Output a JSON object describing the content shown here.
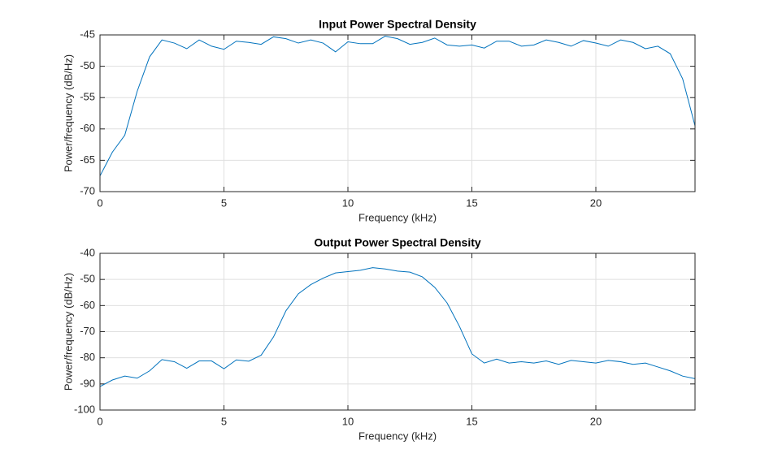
{
  "chart_data": [
    {
      "type": "line",
      "title": "Input Power Spectral Density",
      "xlabel": "Frequency (kHz)",
      "ylabel": "Power/frequency (dB/Hz)",
      "x": [
        0,
        0.5,
        1,
        1.5,
        2,
        2.5,
        3,
        3.5,
        4,
        4.5,
        5,
        5.5,
        6,
        6.5,
        7,
        7.5,
        8,
        8.5,
        9,
        9.5,
        10,
        10.5,
        11,
        11.5,
        12,
        12.5,
        13,
        13.5,
        14,
        14.5,
        15,
        15.5,
        16,
        16.5,
        17,
        17.5,
        18,
        18.5,
        19,
        19.5,
        20,
        20.5,
        21,
        21.5,
        22,
        22.5,
        23,
        23.5,
        24
      ],
      "series": [
        {
          "color": "#0072bd",
          "values": [
            -67.5,
            -63.7,
            -61,
            -54,
            -48.5,
            -45.8,
            -46.3,
            -47.2,
            -45.8,
            -46.8,
            -47.3,
            -46,
            -46.2,
            -46.5,
            -45.3,
            -45.6,
            -46.3,
            -45.8,
            -46.3,
            -47.7,
            -46.1,
            -46.4,
            -46.4,
            -45.2,
            -45.6,
            -46.5,
            -46.2,
            -45.5,
            -46.6,
            -46.8,
            -46.6,
            -47.1,
            -46,
            -46,
            -46.8,
            -46.6,
            -45.8,
            -46.2,
            -46.8,
            -45.9,
            -46.3,
            -46.8,
            -45.8,
            -46.2,
            -47.2,
            -46.8,
            -48,
            -52,
            -59.5
          ]
        }
      ],
      "xlim": [
        0,
        24
      ],
      "xticks": [
        0,
        5,
        10,
        15,
        20
      ],
      "ylim": [
        -70,
        -45
      ],
      "yticks": [
        -70,
        -65,
        -60,
        -55,
        -50,
        -45
      ],
      "grid": true
    },
    {
      "type": "line",
      "title": "Output Power Spectral Density",
      "xlabel": "Frequency (kHz)",
      "ylabel": "Power/frequency (dB/Hz)",
      "x": [
        0,
        0.5,
        1,
        1.5,
        2,
        2.5,
        3,
        3.5,
        4,
        4.5,
        5,
        5.5,
        6,
        6.5,
        7,
        7.5,
        8,
        8.5,
        9,
        9.5,
        10,
        10.5,
        11,
        11.5,
        12,
        12.5,
        13,
        13.5,
        14,
        14.5,
        15,
        15.5,
        16,
        16.5,
        17,
        17.5,
        18,
        18.5,
        19,
        19.5,
        20,
        20.5,
        21,
        21.5,
        22,
        22.5,
        23,
        23.5,
        24
      ],
      "series": [
        {
          "color": "#0072bd",
          "values": [
            -91,
            -88.5,
            -87,
            -87.8,
            -85,
            -80.7,
            -81.5,
            -84,
            -81.2,
            -81.2,
            -84.2,
            -80.8,
            -81.3,
            -79,
            -72,
            -62,
            -55.5,
            -52,
            -49.5,
            -47.5,
            -47,
            -46.5,
            -45.5,
            -46,
            -46.8,
            -47.2,
            -49,
            -53,
            -59,
            -68,
            -78.5,
            -82,
            -80.5,
            -82,
            -81.5,
            -82,
            -81.2,
            -82.5,
            -81,
            -81.5,
            -82,
            -81,
            -81.5,
            -82.5,
            -82,
            -83.5,
            -85,
            -87,
            -88
          ]
        }
      ],
      "xlim": [
        0,
        24
      ],
      "xticks": [
        0,
        5,
        10,
        15,
        20
      ],
      "ylim": [
        -100,
        -40
      ],
      "yticks": [
        -100,
        -90,
        -80,
        -70,
        -60,
        -50,
        -40
      ],
      "grid": true
    }
  ]
}
